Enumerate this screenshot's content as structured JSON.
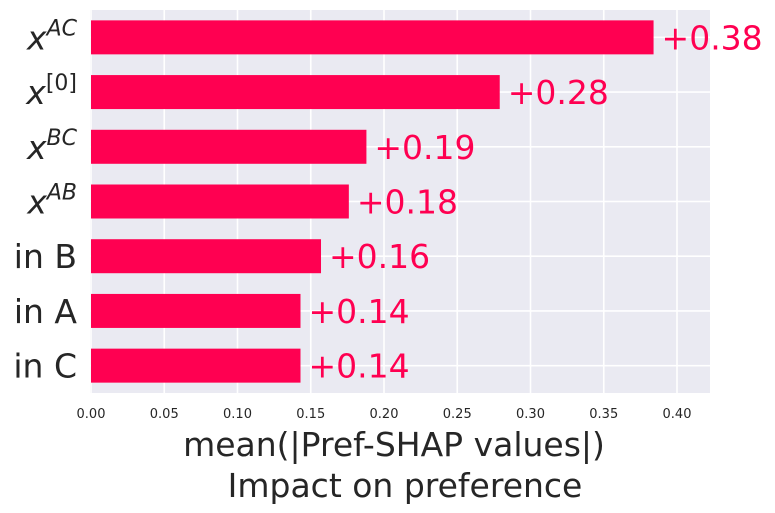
{
  "chart_data": {
    "type": "bar",
    "orientation": "horizontal",
    "categories": [
      {
        "base": "x",
        "sup": "AC"
      },
      {
        "base": "x",
        "sup": "[0]"
      },
      {
        "base": "x",
        "sup": "BC"
      },
      {
        "base": "x",
        "sup": "AB"
      },
      {
        "base": "in B",
        "sup": ""
      },
      {
        "base": "in A",
        "sup": ""
      },
      {
        "base": "in C",
        "sup": ""
      }
    ],
    "values": [
      0.384,
      0.279,
      0.188,
      0.176,
      0.157,
      0.143,
      0.143
    ],
    "value_labels": [
      "+0.38",
      "+0.28",
      "+0.19",
      "+0.18",
      "+0.16",
      "+0.14",
      "+0.14"
    ],
    "xlabel_line1": "mean(|Pref-SHAP values|)",
    "xlabel_line2": "Impact on preference",
    "xticks": [
      0.0,
      0.05,
      0.1,
      0.15,
      0.2,
      0.25,
      0.3,
      0.35,
      0.4
    ],
    "xtick_labels": [
      "0.00",
      "0.05",
      "0.10",
      "0.15",
      "0.20",
      "0.25",
      "0.30",
      "0.35",
      "0.40"
    ],
    "xlim": [
      0,
      0.422
    ],
    "grid": true,
    "colors": {
      "bar": "#ff0051",
      "label": "#ff0051",
      "plot_background": "#eaeaf2",
      "grid": "#ffffff",
      "text": "#262626"
    }
  }
}
